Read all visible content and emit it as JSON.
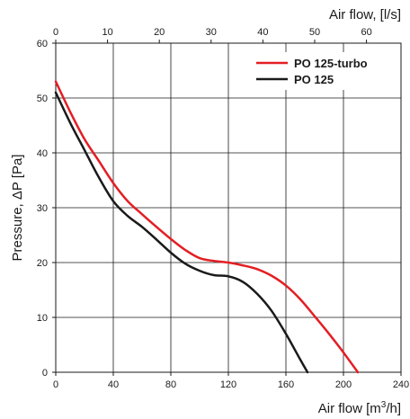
{
  "chart_data": {
    "type": "line",
    "xlabel_bottom": "Air flow [m³/h]",
    "xlabel_bottom_main": "Air flow [m",
    "xlabel_bottom_sup": "3",
    "xlabel_bottom_tail": "/h]",
    "xlabel_top": "Air flow, [l/s]",
    "ylabel": "Pressure, ΔP [Pa]",
    "xlim": [
      0,
      240
    ],
    "ylim": [
      0,
      60
    ],
    "x_ticks": [
      "0",
      "40",
      "80",
      "120",
      "160",
      "200",
      "240"
    ],
    "y_ticks": [
      "0",
      "10",
      "20",
      "30",
      "40",
      "50",
      "60"
    ],
    "top_xlim": [
      0,
      66.67
    ],
    "top_ticks": [
      "0",
      "10",
      "20",
      "30",
      "40",
      "50",
      "60"
    ],
    "grid": true,
    "legend_position": "top-right",
    "series": [
      {
        "name": "PO 125-turbo",
        "color": "#e31e24",
        "x": [
          0,
          10,
          20,
          30,
          40,
          50,
          60,
          70,
          80,
          90,
          100,
          110,
          120,
          130,
          140,
          150,
          160,
          170,
          180,
          190,
          200,
          210
        ],
        "y": [
          53,
          47.5,
          42.5,
          38.5,
          34.5,
          31.2,
          28.8,
          26.5,
          24.3,
          22.3,
          20.8,
          20.3,
          20,
          19.5,
          18.8,
          17.6,
          15.8,
          13.3,
          10.2,
          7,
          3.6,
          0
        ]
      },
      {
        "name": "PO 125",
        "color": "#1a1a1a",
        "x": [
          0,
          10,
          20,
          30,
          40,
          50,
          60,
          70,
          80,
          90,
          100,
          110,
          120,
          130,
          140,
          150,
          160,
          170,
          175
        ],
        "y": [
          51,
          45.5,
          40.5,
          35.5,
          31.2,
          28.5,
          26.5,
          24.2,
          21.8,
          19.8,
          18.5,
          17.7,
          17.5,
          16.5,
          14.3,
          11.2,
          7,
          2.3,
          0
        ]
      }
    ]
  }
}
